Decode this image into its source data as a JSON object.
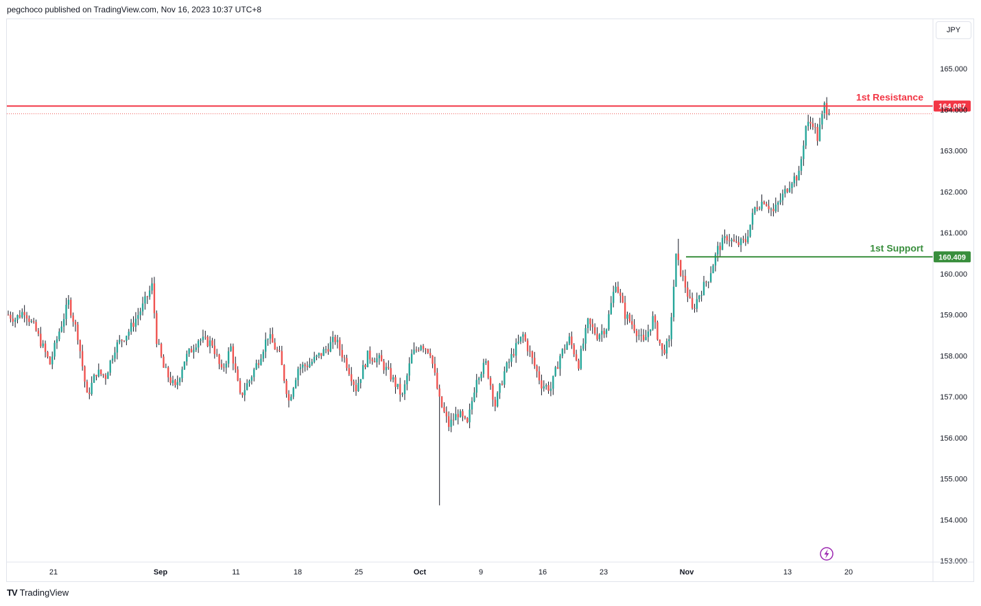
{
  "header": {
    "text": "pegchoco published on TradingView.com, Nov 16, 2023 10:37 UTC+8"
  },
  "currency_label": "JPY",
  "footer": {
    "logo_text": "TV",
    "brand": "TradingView"
  },
  "colors": {
    "up": "#26a69a",
    "down": "#ef5350",
    "resistance": "#f23645",
    "support": "#388e3c",
    "wick": "#131722",
    "accent_icon": "#9c27b0"
  },
  "chart_data": {
    "type": "candlestick",
    "title": "",
    "ylim": [
      153.0,
      165.8
    ],
    "y_ticks": [
      "165.000",
      "164.000",
      "163.000",
      "162.000",
      "161.000",
      "160.000",
      "159.000",
      "158.000",
      "157.000",
      "156.000",
      "155.000",
      "154.000",
      "153.000"
    ],
    "x_ticks": [
      {
        "label": "21",
        "bold": false
      },
      {
        "label": "Sep",
        "bold": true
      },
      {
        "label": "11",
        "bold": false
      },
      {
        "label": "18",
        "bold": false
      },
      {
        "label": "25",
        "bold": false
      },
      {
        "label": "Oct",
        "bold": true
      },
      {
        "label": "9",
        "bold": false
      },
      {
        "label": "16",
        "bold": false
      },
      {
        "label": "23",
        "bold": false
      },
      {
        "label": "Nov",
        "bold": true
      },
      {
        "label": "13",
        "bold": false
      },
      {
        "label": "20",
        "bold": false
      }
    ],
    "horizontal_levels": [
      {
        "label": "1st Resistance",
        "value": 164.087,
        "value_label": "164.087",
        "color": "#f23645"
      },
      {
        "label": "1st Support",
        "value": 160.409,
        "value_label": "160.409",
        "color": "#388e3c"
      }
    ],
    "last_price": 163.9,
    "trend_points": [
      [
        0,
        159.0
      ],
      [
        3,
        158.9
      ],
      [
        7,
        159.1
      ],
      [
        12,
        158.6
      ],
      [
        18,
        157.8
      ],
      [
        22,
        158.6
      ],
      [
        26,
        159.3
      ],
      [
        30,
        158.5
      ],
      [
        34,
        157.0
      ],
      [
        38,
        157.6
      ],
      [
        42,
        157.5
      ],
      [
        46,
        158.2
      ],
      [
        52,
        158.6
      ],
      [
        58,
        159.2
      ],
      [
        62,
        159.7
      ],
      [
        64,
        158.4
      ],
      [
        67,
        157.7
      ],
      [
        72,
        157.2
      ],
      [
        76,
        157.9
      ],
      [
        82,
        158.4
      ],
      [
        88,
        158.3
      ],
      [
        92,
        157.6
      ],
      [
        96,
        158.2
      ],
      [
        100,
        157.0
      ],
      [
        104,
        157.4
      ],
      [
        108,
        157.9
      ],
      [
        112,
        158.5
      ],
      [
        117,
        158.0
      ],
      [
        121,
        156.9
      ],
      [
        125,
        157.7
      ],
      [
        130,
        157.8
      ],
      [
        136,
        158.1
      ],
      [
        141,
        158.4
      ],
      [
        146,
        157.8
      ],
      [
        150,
        157.2
      ],
      [
        155,
        158.0
      ],
      [
        160,
        157.9
      ],
      [
        165,
        157.5
      ],
      [
        170,
        157.0
      ],
      [
        174,
        158.0
      ],
      [
        178,
        158.3
      ],
      [
        182,
        158.1
      ],
      [
        186,
        156.9
      ],
      [
        190,
        156.3
      ],
      [
        194,
        156.6
      ],
      [
        198,
        156.3
      ],
      [
        202,
        157.5
      ],
      [
        206,
        157.8
      ],
      [
        210,
        156.8
      ],
      [
        214,
        157.6
      ],
      [
        218,
        158.1
      ],
      [
        222,
        158.5
      ],
      [
        226,
        157.9
      ],
      [
        230,
        157.3
      ],
      [
        234,
        157.2
      ],
      [
        238,
        158.0
      ],
      [
        242,
        158.4
      ],
      [
        246,
        157.8
      ],
      [
        250,
        158.8
      ],
      [
        254,
        158.5
      ],
      [
        258,
        158.7
      ],
      [
        262,
        159.8
      ],
      [
        266,
        159.0
      ],
      [
        270,
        158.7
      ],
      [
        274,
        158.3
      ],
      [
        278,
        158.9
      ],
      [
        282,
        158.1
      ],
      [
        285,
        158.3
      ],
      [
        288,
        160.4
      ],
      [
        292,
        159.7
      ],
      [
        295,
        159.1
      ],
      [
        298,
        159.5
      ],
      [
        302,
        159.9
      ],
      [
        306,
        160.6
      ],
      [
        310,
        160.9
      ],
      [
        314,
        160.7
      ],
      [
        318,
        160.8
      ],
      [
        322,
        161.6
      ],
      [
        326,
        161.8
      ],
      [
        330,
        161.5
      ],
      [
        334,
        161.9
      ],
      [
        338,
        162.3
      ],
      [
        341,
        162.4
      ],
      [
        344,
        163.6
      ],
      [
        347,
        163.7
      ],
      [
        349,
        163.3
      ],
      [
        352,
        164.1
      ],
      [
        354,
        163.9
      ]
    ]
  }
}
